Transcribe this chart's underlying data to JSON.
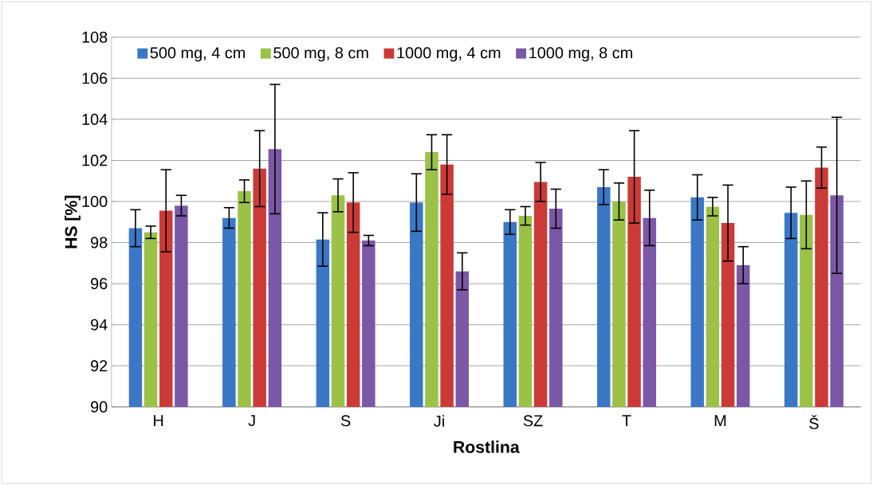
{
  "chart_data": {
    "type": "bar",
    "xlabel": "Rostlina",
    "ylabel": "HS [%]",
    "categories": [
      "H",
      "J",
      "S",
      "Ji",
      "SZ",
      "T",
      "M",
      "Š"
    ],
    "series": [
      {
        "name": "500 mg, 4 cm",
        "color": "#3a78c6",
        "values": [
          98.7,
          99.2,
          98.15,
          99.95,
          99.0,
          100.7,
          100.2,
          99.45
        ],
        "errors": [
          0.9,
          0.5,
          1.3,
          1.4,
          0.6,
          0.85,
          1.1,
          1.25
        ]
      },
      {
        "name": "500 mg, 8 cm",
        "color": "#9bc146",
        "values": [
          98.5,
          100.5,
          100.3,
          102.4,
          99.3,
          100.0,
          99.75,
          99.35
        ],
        "errors": [
          0.3,
          0.55,
          0.8,
          0.85,
          0.45,
          0.9,
          0.45,
          1.65
        ]
      },
      {
        "name": "1000 mg, 4 cm",
        "color": "#cc3a37",
        "values": [
          99.55,
          101.6,
          99.95,
          101.8,
          100.95,
          101.2,
          98.95,
          101.65
        ],
        "errors": [
          2.0,
          1.85,
          1.45,
          1.45,
          0.95,
          2.25,
          1.85,
          1.0
        ]
      },
      {
        "name": "1000 mg, 8 cm",
        "color": "#7a58a6",
        "values": [
          99.8,
          102.55,
          98.1,
          96.6,
          99.65,
          99.2,
          96.9,
          100.3
        ],
        "errors": [
          0.5,
          3.15,
          0.25,
          0.9,
          0.95,
          1.35,
          0.9,
          3.8
        ]
      }
    ],
    "ylim": [
      90,
      108
    ],
    "yticks": [
      90,
      92,
      94,
      96,
      98,
      100,
      102,
      104,
      106,
      108
    ],
    "grid": "y",
    "legend": "top"
  }
}
